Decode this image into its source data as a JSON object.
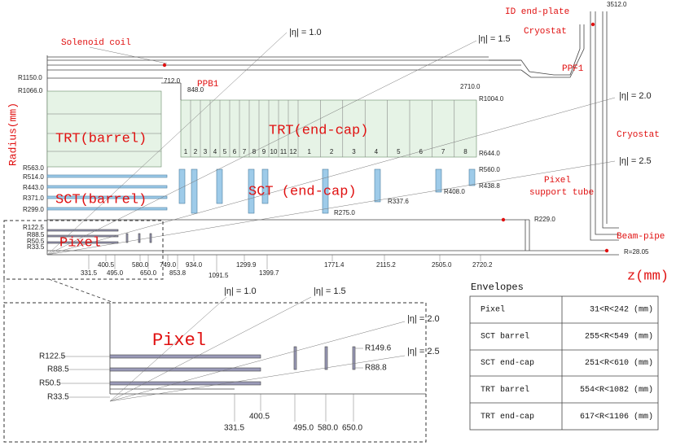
{
  "labels": [
    "Solenoid coil",
    "ID end-plate",
    "Cryostat",
    "3512.0",
    "PPF1",
    "PPB1",
    "Cryostat",
    "TRT(barrel)",
    "TRT(end-cap)",
    "SCT(barrel)",
    "SCT (end-cap)",
    "Pixel",
    "Pixel",
    "support tube",
    "Beam-pipe",
    "z(mm)",
    "Radius(mm)"
  ],
  "eta": [
    "|η| = 1.0",
    "|η| = 1.5",
    "|η| = 2.0",
    "|η| = 2.5"
  ],
  "radii": [
    "R1150.0",
    "R1066.0",
    "R563.0",
    "R514.0",
    "R443.0",
    "R371.0",
    "R299.0",
    "R122.5",
    "R88.5",
    "R50.5",
    "R33.5",
    "712.0",
    "848.0",
    "2710.0",
    "R1004.0",
    "R644.0",
    "R560.0",
    "R438.8",
    "R408.0",
    "R337.6",
    "R275.0",
    "R229.0",
    "R=28.05"
  ],
  "module_numbers": [
    "1",
    "2",
    "3",
    "4",
    "5",
    "6",
    "7",
    "8",
    "9",
    "10",
    "11",
    "12",
    "1",
    "2",
    "3",
    "4",
    "5",
    "6",
    "7",
    "8"
  ],
  "z_positions": [
    "400.5",
    "331.5",
    "580.0",
    "495.0",
    "650.0",
    "749.0",
    "853.8",
    "934.0",
    "1091.5",
    "1299.9",
    "1399.7",
    "1771.4",
    "2115.2",
    "2505.0",
    "2720.2"
  ],
  "zoom": {
    "title": "Pixel",
    "eta": [
      "|η| = 1.0",
      "|η| = 1.5",
      "|η| = 2.0",
      "|η| = 2.5"
    ],
    "labels": [
      "R122.5",
      "R88.5",
      "R50.5",
      "R33.5",
      "R149.6",
      "R88.8",
      "400.5",
      "331.5",
      "495.0",
      "580.0",
      "650.0"
    ]
  },
  "envelopes": {
    "title": "Envelopes",
    "rows": [
      [
        "Pixel",
        "31<R<242 (mm)"
      ],
      [
        "SCT barrel",
        "255<R<549 (mm)"
      ],
      [
        "SCT end-cap",
        "251<R<610 (mm)"
      ],
      [
        "TRT barrel",
        "554<R<1082 (mm)"
      ],
      [
        "TRT end-cap",
        "617<R<1106 (mm)"
      ]
    ]
  }
}
